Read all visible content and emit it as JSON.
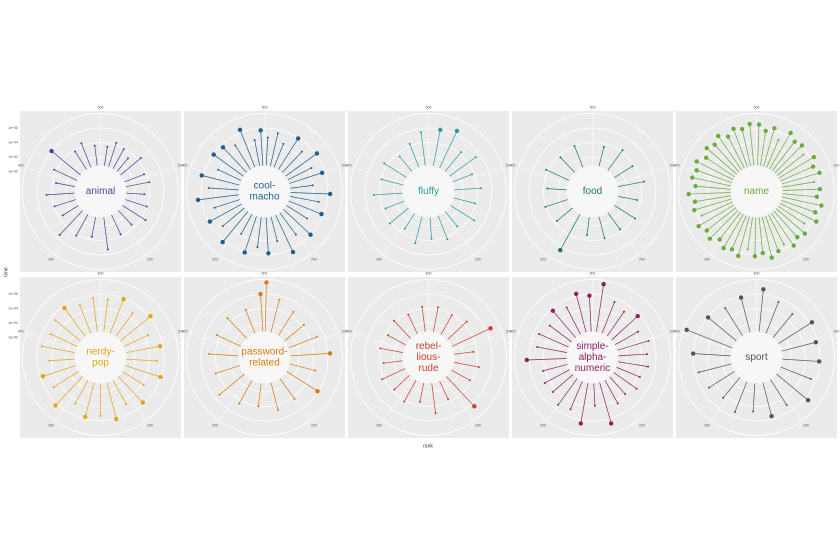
{
  "chart_data": {
    "type": "polar_lollipop",
    "xlabel": "rank",
    "ylabel": "time",
    "xlim": [
      0,
      500
    ],
    "xticks": [
      100,
      200,
      300,
      400,
      500
    ],
    "ylim": [
      1,
      100000000
    ],
    "log_y": true,
    "yticks": [
      {
        "value": 1,
        "label": "1e+00"
      },
      {
        "value": 100,
        "label": "1e+02"
      },
      {
        "value": 10000,
        "label": "1e+04"
      },
      {
        "value": 1000000,
        "label": "1e+06"
      }
    ],
    "panels": [
      {
        "label_lines": [
          "animal"
        ],
        "color": "#5b3a96",
        "x": [
          12,
          25,
          40,
          55,
          70,
          95,
          110,
          130,
          150,
          170,
          190,
          215,
          240,
          265,
          290,
          310,
          330,
          350,
          370,
          390,
          410,
          430,
          455,
          470,
          490
        ],
        "values": [
          3000,
          20000,
          8000,
          1500,
          30000,
          5000,
          12000,
          2000,
          9000,
          40000,
          3000,
          6000,
          200000,
          4000,
          15000,
          300000,
          2500,
          8000,
          50000,
          3000,
          20000,
          1000000,
          6000,
          25000,
          4000
        ]
      },
      {
        "label_lines": [
          "cool-",
          "macho"
        ],
        "color": "#1f5f8b",
        "x": [
          5,
          18,
          30,
          45,
          60,
          75,
          88,
          100,
          115,
          128,
          140,
          155,
          170,
          185,
          200,
          215,
          230,
          245,
          260,
          275,
          290,
          305,
          320,
          335,
          350,
          365,
          380,
          395,
          410,
          425,
          440,
          455,
          470,
          485,
          495
        ],
        "values": [
          50000,
          300000,
          20000,
          800000,
          60000,
          1500000,
          30000,
          400000,
          9000,
          2000000,
          70000,
          500000,
          15000,
          900000,
          40000,
          3000000,
          20000,
          600000,
          100000,
          1200000,
          8000,
          2000000,
          50000,
          700000,
          30000,
          3000000,
          90000,
          1500000,
          20000,
          800000,
          400000,
          60000,
          2500000,
          30000,
          500000
        ]
      },
      {
        "label_lines": [
          "fluffy"
        ],
        "color": "#2a9d9a",
        "x": [
          15,
          35,
          55,
          75,
          95,
          120,
          145,
          170,
          195,
          220,
          245,
          270,
          295,
          320,
          345,
          370,
          395,
          420,
          445,
          470,
          490
        ],
        "values": [
          800000,
          3000000,
          20000,
          200000,
          5000,
          30000,
          8000,
          50000,
          3000,
          20000,
          6000,
          40000,
          2000,
          15000,
          4000,
          60000,
          9000,
          30000,
          3000,
          20000,
          300000
        ]
      },
      {
        "label_lines": [
          "food"
        ],
        "color": "#1b7a60",
        "x": [
          20,
          50,
          80,
          110,
          140,
          170,
          200,
          230,
          260,
          290,
          320,
          350,
          380,
          410,
          440,
          470
        ],
        "values": [
          4000,
          20000,
          6000,
          30000,
          3000,
          15000,
          5000,
          8000,
          2000,
          3000000,
          4000,
          12000,
          3000,
          20000,
          5000,
          10000
        ]
      },
      {
        "label_lines": [
          "name"
        ],
        "color": "#6aab3b",
        "x": [
          3,
          12,
          22,
          32,
          42,
          52,
          62,
          72,
          82,
          92,
          102,
          112,
          122,
          132,
          142,
          152,
          162,
          172,
          182,
          192,
          202,
          212,
          222,
          232,
          242,
          252,
          262,
          272,
          282,
          292,
          302,
          312,
          322,
          332,
          342,
          352,
          362,
          372,
          382,
          392,
          402,
          412,
          422,
          432,
          442,
          452,
          462,
          472,
          482,
          492
        ],
        "values": [
          3000000,
          500000,
          2000000,
          100000,
          4000000,
          800000,
          1500000,
          300000,
          3000000,
          600000,
          2000000,
          200000,
          1000000,
          400000,
          2500000,
          700000,
          3000000,
          150000,
          1200000,
          500000,
          2000000,
          300000,
          1000000,
          4000000,
          600000,
          1500000,
          200000,
          3000000,
          800000,
          1800000,
          400000,
          2500000,
          900000,
          3500000,
          300000,
          1600000,
          700000,
          4000000,
          500000,
          2000000,
          1000000,
          3000000,
          400000,
          2200000,
          800000,
          3500000,
          600000,
          2800000,
          1200000,
          4000000
        ]
      },
      {
        "label_lines": [
          "nerdy-",
          "pop"
        ],
        "color": "#e8a317",
        "x": [
          10,
          30,
          50,
          70,
          90,
          110,
          130,
          150,
          170,
          190,
          210,
          230,
          250,
          270,
          290,
          310,
          330,
          350,
          370,
          390,
          410,
          430,
          450,
          470,
          490
        ],
        "values": [
          200000,
          800000,
          60000,
          1500000,
          30000,
          400000,
          100000,
          900000,
          20000,
          600000,
          40000,
          1000000,
          200000,
          500000,
          30000,
          2000000,
          80000,
          400000,
          20000,
          300000,
          60000,
          200000,
          500000,
          100000,
          300000
        ]
      },
      {
        "label_lines": [
          "password-",
          "related"
        ],
        "color": "#d97a0f",
        "x": [
          2,
          20,
          45,
          70,
          95,
          120,
          145,
          170,
          200,
          230,
          260,
          290,
          320,
          350,
          380,
          410,
          440,
          470,
          495
        ],
        "values": [
          40000000,
          300000,
          50000,
          20000,
          100000,
          2000000,
          30000,
          800000,
          20000,
          50000,
          10000,
          30000,
          200000,
          20000,
          80000,
          30000,
          50000,
          20000,
          1000000
        ]
      },
      {
        "label_lines": [
          "rebel-",
          "lious-",
          "rude"
        ],
        "color": "#c7402c",
        "x": [
          15,
          40,
          65,
          90,
          115,
          140,
          165,
          190,
          215,
          240,
          265,
          290,
          315,
          340,
          365,
          390,
          415,
          440,
          465,
          490
        ],
        "values": [
          20000,
          8000,
          30000,
          5000000,
          3000,
          20000,
          6000,
          3000000,
          4000,
          100000,
          3000,
          15000,
          5000,
          20000,
          3000,
          10000,
          4000,
          15000,
          6000,
          20000
        ]
      },
      {
        "label_lines": [
          "simple-",
          "alpha-",
          "numeric"
        ],
        "color": "#8e2060",
        "x": [
          12,
          30,
          48,
          66,
          84,
          102,
          120,
          138,
          156,
          174,
          192,
          210,
          228,
          246,
          264,
          282,
          300,
          318,
          336,
          354,
          372,
          390,
          408,
          426,
          444,
          462,
          480,
          496
        ],
        "values": [
          30000000,
          300000,
          80000,
          500000,
          30000,
          200000,
          60000,
          100000,
          20000,
          50000,
          10000,
          30000,
          5000000,
          8000,
          3000000,
          100000,
          200000,
          30000,
          50000,
          20000,
          2000000,
          100000,
          200000,
          40000,
          500000,
          100000,
          2000000,
          600000
        ]
      },
      {
        "label_lines": [
          "sport"
        ],
        "color": "#555555",
        "x": [
          8,
          30,
          55,
          80,
          105,
          130,
          155,
          180,
          205,
          230,
          255,
          280,
          305,
          330,
          355,
          380,
          405,
          430,
          455,
          480
        ],
        "values": [
          5000000,
          300000,
          100000,
          2000000,
          500000,
          800000,
          200000,
          3000000,
          100000,
          400000,
          50000,
          200000,
          30000,
          100000,
          300000,
          1000000,
          40000000,
          800000,
          200000,
          600000
        ]
      }
    ]
  }
}
